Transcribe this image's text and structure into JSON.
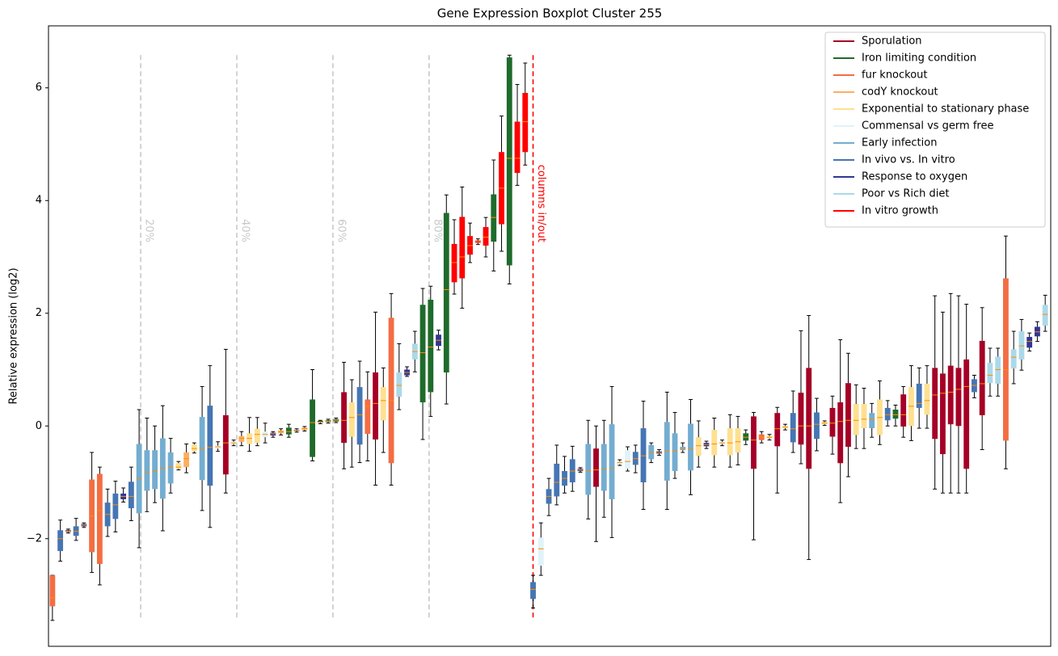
{
  "chart_data": {
    "type": "boxplot",
    "title": "Gene Expression Boxplot Cluster 255",
    "ylabel": "Relative expression (log2)",
    "xlim": [
      0.5,
      127.7
    ],
    "ylim": [
      -3.91,
      7.1
    ],
    "yticks": [
      {
        "value": -2,
        "label": "−2"
      },
      0,
      2,
      4,
      6
    ],
    "grid": false,
    "legend": "upper right",
    "median_color": "#ff8c00",
    "whisker_color": "#000000",
    "vlines": [
      {
        "x": 12.2,
        "label": "20%",
        "color": "#c8c8c8"
      },
      {
        "x": 24.4,
        "label": "40%",
        "color": "#c8c8c8"
      },
      {
        "x": 36.6,
        "label": "60%",
        "color": "#c8c8c8"
      },
      {
        "x": 48.8,
        "label": "80%",
        "color": "#c8c8c8"
      },
      {
        "x": 62,
        "label": "columns in/out",
        "color": "#ff0000"
      }
    ],
    "series": [
      {
        "name": "Sporulation",
        "color": "#a50026",
        "x": [
          23,
          38,
          42,
          70,
          90,
          93,
          96,
          97,
          100,
          101,
          102,
          109,
          113,
          114,
          115,
          116,
          117,
          119
        ],
        "boxes": [
          [
            -1.19,
            -0.86,
            -0.3,
            0.19,
            1.36
          ],
          [
            -0.76,
            -0.3,
            0.1,
            0.6,
            1.13
          ],
          [
            -1.05,
            -0.24,
            0.4,
            0.95,
            2.02
          ],
          [
            -2.05,
            -1.08,
            -0.78,
            -0.4,
            0
          ],
          [
            -2.02,
            -0.76,
            -0.25,
            0.17,
            0.24
          ],
          [
            -1.19,
            -0.36,
            -0.05,
            0.23,
            0.33
          ],
          [
            -0.67,
            -0.33,
            0,
            0.59,
            1.69
          ],
          [
            -2.37,
            -0.76,
            0,
            1.03,
            1.96
          ],
          [
            -0.5,
            -0.19,
            0.05,
            0.32,
            0.53
          ],
          [
            -1.36,
            -0.66,
            0.08,
            0.42,
            1.53
          ],
          [
            -0.9,
            -0.37,
            0.1,
            0.76,
            1.29
          ],
          [
            -0.2,
            -0.01,
            0.2,
            0.56,
            0.7
          ],
          [
            -1.12,
            -0.23,
            0.55,
            1.03,
            2.31
          ],
          [
            -1.19,
            -0.5,
            0.58,
            0.93,
            2.02
          ],
          [
            -1.19,
            0.03,
            0.6,
            1.07,
            2.35
          ],
          [
            -1.19,
            0,
            0.65,
            1.03,
            2.31
          ],
          [
            -1.19,
            -0.76,
            0.7,
            1.18,
            2.16
          ],
          [
            -0.42,
            0.19,
            0.75,
            1.51,
            2.1
          ]
        ]
      },
      {
        "name": "Iron limiting condition",
        "color": "#1f6b2b",
        "x": [
          31,
          34,
          35,
          36,
          37,
          48,
          49,
          51,
          57,
          59,
          89,
          108
        ],
        "boxes": [
          [
            -0.2,
            -0.15,
            -0.1,
            -0.03,
            0.03
          ],
          [
            -0.62,
            -0.55,
            0.06,
            0.47,
            1.0
          ],
          [
            0.04,
            0.06,
            0.07,
            0.09,
            0.1
          ],
          [
            0.05,
            0.07,
            0.08,
            0.1,
            0.12
          ],
          [
            0.06,
            0.08,
            0.1,
            0.12,
            0.14
          ],
          [
            -0.24,
            0.42,
            1.3,
            2.15,
            2.44
          ],
          [
            0.17,
            0.6,
            1.4,
            2.24,
            2.48
          ],
          [
            0.39,
            0.95,
            2.42,
            3.78,
            4.1
          ],
          [
            2.75,
            3.27,
            3.7,
            4.11,
            4.72
          ],
          [
            2.52,
            2.85,
            4.75,
            6.54,
            6.58
          ],
          [
            -0.33,
            -0.26,
            -0.2,
            -0.13,
            -0.07
          ],
          [
            0,
            0.13,
            0.2,
            0.29,
            0.37
          ]
        ]
      },
      {
        "name": "fur knockout",
        "color": "#f46d43",
        "x": [
          1,
          6,
          7,
          41,
          44,
          91,
          122
        ],
        "boxes": [
          [
            -3.45,
            -3.2,
            -3.05,
            -2.65,
            -2.65
          ],
          [
            -2.6,
            -2.24,
            -1.6,
            -0.95,
            -0.47
          ],
          [
            -2.82,
            -2.45,
            -1.5,
            -0.85,
            -0.73
          ],
          [
            -0.62,
            -0.14,
            0.35,
            0.47,
            0.96
          ],
          [
            -1.05,
            -0.66,
            0.45,
            1.92,
            2.35
          ],
          [
            -0.3,
            -0.25,
            -0.2,
            -0.15,
            -0.1
          ],
          [
            -0.76,
            -0.26,
            1.0,
            2.62,
            3.37
          ]
        ]
      },
      {
        "name": "codY knockout",
        "color": "#fdae61",
        "x": [
          18,
          25,
          30,
          33
        ],
        "boxes": [
          [
            -0.83,
            -0.73,
            -0.58,
            -0.47,
            -0.32
          ],
          [
            -0.35,
            -0.28,
            -0.22,
            -0.18,
            -0.1
          ],
          [
            -0.16,
            -0.13,
            -0.1,
            -0.08,
            -0.05
          ],
          [
            -0.09,
            -0.07,
            -0.05,
            -0.03,
            -0.01
          ]
        ]
      },
      {
        "name": "Exponential to stationary phase",
        "color": "#fee090",
        "x": [
          17,
          19,
          26,
          27,
          39,
          43,
          83,
          85,
          87,
          88,
          92,
          94,
          99,
          103,
          104,
          106,
          110,
          112
        ],
        "boxes": [
          [
            -0.78,
            -0.76,
            -0.73,
            -0.66,
            -0.63
          ],
          [
            -0.48,
            -0.45,
            -0.4,
            -0.33,
            -0.3
          ],
          [
            -0.45,
            -0.32,
            -0.22,
            -0.13,
            0.15
          ],
          [
            -0.35,
            -0.3,
            -0.15,
            -0.05,
            0.15
          ],
          [
            -0.73,
            -0.19,
            0.15,
            0.42,
            0.82
          ],
          [
            -0.47,
            0.1,
            0.45,
            0.69,
            1.03
          ],
          [
            -0.73,
            -0.53,
            -0.35,
            -0.2,
            0.09
          ],
          [
            -0.73,
            -0.52,
            -0.32,
            -0.07,
            0.14
          ],
          [
            -0.73,
            -0.52,
            -0.3,
            -0.04,
            0.2
          ],
          [
            -0.69,
            -0.47,
            -0.28,
            -0.04,
            0.17
          ],
          [
            -0.25,
            -0.22,
            -0.2,
            -0.18,
            -0.15
          ],
          [
            -0.07,
            -0.04,
            -0.02,
            0,
            0.03
          ],
          [
            0.01,
            0.03,
            0.05,
            0.07,
            0.09
          ],
          [
            -0.4,
            -0.16,
            0.1,
            0.39,
            0.73
          ],
          [
            -0.4,
            -0.04,
            0.12,
            0.39,
            0.67
          ],
          [
            -0.33,
            -0.16,
            0.15,
            0.47,
            0.8
          ],
          [
            -0.26,
            0,
            0.35,
            0.69,
            1.07
          ],
          [
            -0.04,
            0.2,
            0.45,
            0.75,
            1.07
          ]
        ]
      },
      {
        "name": "Commensal vs germ free",
        "color": "#e0f3f8",
        "x": [
          22,
          24,
          28,
          63,
          73,
          74,
          86
        ],
        "boxes": [
          [
            -0.45,
            -0.4,
            -0.37,
            -0.35,
            -0.28
          ],
          [
            -0.35,
            -0.32,
            -0.3,
            -0.28,
            -0.25
          ],
          [
            -0.3,
            -0.2,
            -0.15,
            -0.1,
            0.05
          ],
          [
            -2.65,
            -2.48,
            -2.18,
            -1.98,
            -1.72
          ],
          [
            -0.7,
            -0.68,
            -0.65,
            -0.63,
            -0.6
          ],
          [
            -0.8,
            -0.76,
            -0.63,
            -0.43,
            -0.37
          ],
          [
            -0.35,
            -0.32,
            -0.3,
            -0.28,
            -0.25
          ]
        ]
      },
      {
        "name": "Early infection",
        "color": "#74add1",
        "x": [
          12,
          13,
          14,
          15,
          16,
          20,
          69,
          71,
          72,
          77,
          79,
          80,
          81,
          82,
          105
        ],
        "boxes": [
          [
            -2.16,
            -1.55,
            -0.95,
            -0.32,
            0.29
          ],
          [
            -1.52,
            -1.15,
            -0.82,
            -0.43,
            0.14
          ],
          [
            -1.36,
            -1.12,
            -0.8,
            -0.43,
            0
          ],
          [
            -1.86,
            -1.29,
            -0.75,
            -0.22,
            0.36
          ],
          [
            -1.19,
            -1.02,
            -0.73,
            -0.47,
            -0.22
          ],
          [
            -1.5,
            -0.96,
            -0.4,
            0.16,
            0.7
          ],
          [
            -1.65,
            -1.22,
            -0.8,
            -0.32,
            0.1
          ],
          [
            -1.62,
            -1.15,
            -0.77,
            -0.32,
            0.1
          ],
          [
            -1.98,
            -1.3,
            -0.75,
            0.03,
            0.7
          ],
          [
            -0.65,
            -0.59,
            -0.47,
            -0.34,
            -0.3
          ],
          [
            -1.48,
            -0.97,
            -0.45,
            0.07,
            0.6
          ],
          [
            -0.93,
            -0.8,
            -0.45,
            -0.13,
            0.24
          ],
          [
            -0.47,
            -0.43,
            -0.4,
            -0.37,
            -0.3
          ],
          [
            -1.22,
            -0.79,
            -0.4,
            0.04,
            0.47
          ],
          [
            -0.2,
            -0.04,
            0.12,
            0.23,
            0.4
          ]
        ]
      },
      {
        "name": "In vivo vs. In vitro",
        "color": "#4575b4",
        "x": [
          2,
          4,
          8,
          9,
          11,
          21,
          40,
          62,
          64,
          65,
          66,
          67,
          75,
          76,
          95,
          98,
          107,
          111,
          118
        ],
        "boxes": [
          [
            -2.4,
            -2.22,
            -2.0,
            -1.85,
            -1.67
          ],
          [
            -2.03,
            -1.95,
            -1.87,
            -1.78,
            -1.64
          ],
          [
            -1.96,
            -1.78,
            -1.57,
            -1.36,
            -1.12
          ],
          [
            -1.88,
            -1.65,
            -1.4,
            -1.2,
            -0.98
          ],
          [
            -1.68,
            -1.46,
            -1.25,
            -0.99,
            -0.73
          ],
          [
            -1.8,
            -1.06,
            -0.38,
            0.36,
            1.07
          ],
          [
            -0.65,
            -0.33,
            0.2,
            0.69,
            1.15
          ],
          [
            -3.23,
            -3.07,
            -2.9,
            -2.77,
            -2.65
          ],
          [
            -1.59,
            -1.38,
            -1.25,
            -1.12,
            -0.93
          ],
          [
            -1.4,
            -1.25,
            -1.0,
            -0.67,
            -0.34
          ],
          [
            -1.19,
            -1.06,
            -0.93,
            -0.8,
            -0.54
          ],
          [
            -1.16,
            -1.0,
            -0.8,
            -0.59,
            -0.36
          ],
          [
            -0.83,
            -0.69,
            -0.58,
            -0.46,
            -0.34
          ],
          [
            -1.48,
            -1.0,
            -0.53,
            -0.04,
            0.44
          ],
          [
            -0.47,
            -0.29,
            -0.05,
            0.23,
            0.62
          ],
          [
            -0.44,
            -0.23,
            0.03,
            0.24,
            0.49
          ],
          [
            0,
            0.1,
            0.2,
            0.32,
            0.45
          ],
          [
            -0.04,
            0.32,
            0.4,
            0.75,
            1.03
          ],
          [
            0.5,
            0.6,
            0.72,
            0.83,
            0.9
          ]
        ]
      },
      {
        "name": "Response to oxygen",
        "color": "#313695",
        "x": [
          3,
          5,
          10,
          29,
          32,
          46,
          50,
          68,
          78,
          84,
          125,
          126
        ],
        "boxes": [
          [
            -1.9,
            -1.88,
            -1.87,
            -1.85,
            -1.83
          ],
          [
            -1.8,
            -1.78,
            -1.76,
            -1.74,
            -1.72
          ],
          [
            -1.35,
            -1.3,
            -1.25,
            -1.2,
            -1.1
          ],
          [
            -0.2,
            -0.17,
            -0.14,
            -0.12,
            -0.1
          ],
          [
            -0.11,
            -0.09,
            -0.08,
            -0.07,
            -0.05
          ],
          [
            0.88,
            0.9,
            0.95,
            1.0,
            1.05
          ],
          [
            1.35,
            1.42,
            1.52,
            1.62,
            1.7
          ],
          [
            -0.82,
            -0.8,
            -0.78,
            -0.76,
            -0.74
          ],
          [
            -0.52,
            -0.49,
            -0.47,
            -0.45,
            -0.42
          ],
          [
            -0.4,
            -0.36,
            -0.33,
            -0.3,
            -0.27
          ],
          [
            1.33,
            1.39,
            1.5,
            1.58,
            1.65
          ],
          [
            1.5,
            1.59,
            1.67,
            1.76,
            1.85
          ]
        ]
      },
      {
        "name": "Poor vs Rich diet",
        "color": "#abd9e9",
        "x": [
          45,
          47,
          120,
          121,
          123,
          124,
          127
        ],
        "boxes": [
          [
            0.29,
            0.52,
            0.72,
            0.95,
            1.46
          ],
          [
            0.96,
            1.18,
            1.32,
            1.46,
            1.68
          ],
          [
            0.53,
            0.76,
            0.9,
            1.12,
            1.38
          ],
          [
            0.53,
            0.75,
            1.0,
            1.23,
            1.38
          ],
          [
            0.75,
            1.02,
            1.22,
            1.36,
            1.68
          ],
          [
            0.99,
            1.18,
            1.42,
            1.68,
            1.89
          ],
          [
            1.68,
            1.78,
            1.98,
            2.15,
            2.32
          ]
        ]
      },
      {
        "name": "In vitro growth",
        "color": "#ff0000",
        "x": [
          52,
          53,
          54,
          55,
          56,
          58,
          60,
          61
        ],
        "boxes": [
          [
            2.34,
            2.55,
            2.9,
            3.23,
            3.66
          ],
          [
            2.09,
            2.62,
            3.0,
            3.71,
            4.24
          ],
          [
            2.9,
            3.04,
            3.2,
            3.37,
            3.6
          ],
          [
            3.22,
            3.25,
            3.27,
            3.29,
            3.32
          ],
          [
            3.0,
            3.2,
            3.35,
            3.53,
            3.7
          ],
          [
            3.1,
            3.58,
            4.22,
            4.86,
            5.5
          ],
          [
            4.27,
            4.49,
            4.75,
            5.4,
            6.06
          ],
          [
            4.63,
            4.86,
            5.4,
            5.91,
            6.44
          ]
        ]
      }
    ]
  }
}
